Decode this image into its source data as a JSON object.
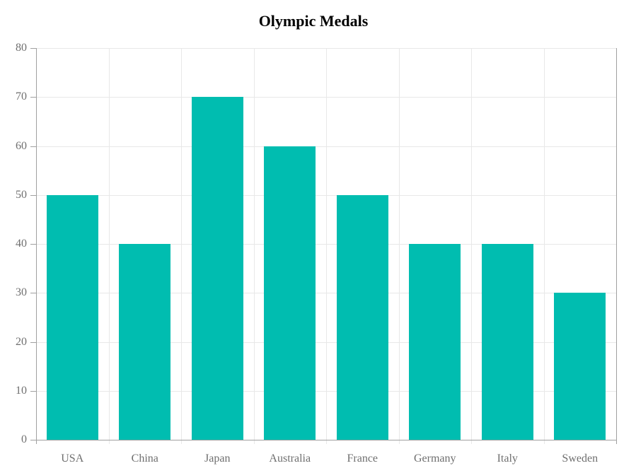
{
  "chart_data": {
    "type": "bar",
    "title": "Olympic Medals",
    "categories": [
      "USA",
      "China",
      "Japan",
      "Australia",
      "France",
      "Germany",
      "Italy",
      "Sweden"
    ],
    "values": [
      50,
      40,
      70,
      60,
      50,
      40,
      40,
      30
    ],
    "xlabel": "",
    "ylabel": "",
    "ylim": [
      0,
      80
    ],
    "yticks": [
      0,
      10,
      20,
      30,
      40,
      50,
      60,
      70,
      80
    ],
    "grid": "on",
    "legend": "none",
    "bar_color": "#00bdb0",
    "gridline_color": "#e8e8e8",
    "axis_color": "#a0a0a0",
    "label_color": "#6f6f6f",
    "title_color": "#000000",
    "background_color": "#ffffff"
  }
}
